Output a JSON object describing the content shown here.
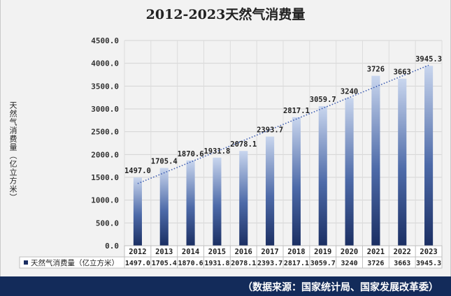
{
  "chart_data": {
    "type": "bar",
    "title": "2012-2023天然气消费量",
    "ylabel": "天然气消费量（亿立方米）",
    "xlabel": "",
    "ylim": [
      0,
      4500
    ],
    "ytick_step": 500,
    "ytick_labels": [
      "0.0",
      "500.0",
      "1000.0",
      "1500.0",
      "2000.0",
      "2500.0",
      "3000.0",
      "3500.0",
      "4000.0",
      "4500.0"
    ],
    "categories": [
      "2012",
      "2013",
      "2014",
      "2015",
      "2016",
      "2017",
      "2018",
      "2019",
      "2020",
      "2021",
      "2022",
      "2023"
    ],
    "values": [
      1497.0,
      1705.4,
      1870.6,
      1931.8,
      2078.1,
      2393.7,
      2817.1,
      3059.7,
      3240,
      3726,
      3663,
      3945.3
    ],
    "value_labels": [
      "1497.0",
      "1705.4",
      "1870.6",
      "1931.8",
      "2078.1",
      "2393.7",
      "2817.1",
      "3059.7",
      "3240",
      "3726",
      "3663",
      "3945.3"
    ],
    "series": [
      {
        "name": "天然气消费量（亿立方米）"
      }
    ],
    "trendline": "linear dotted",
    "grid": true,
    "data_table": true,
    "colors": {
      "bar_top": "#c9d6ee",
      "bar_bottom": "#1b2f63",
      "trend": "#3b5bb0",
      "footer": "#132b5a"
    }
  },
  "footer": {
    "source": "（数据来源：国家统计局、国家发展改革委）"
  }
}
